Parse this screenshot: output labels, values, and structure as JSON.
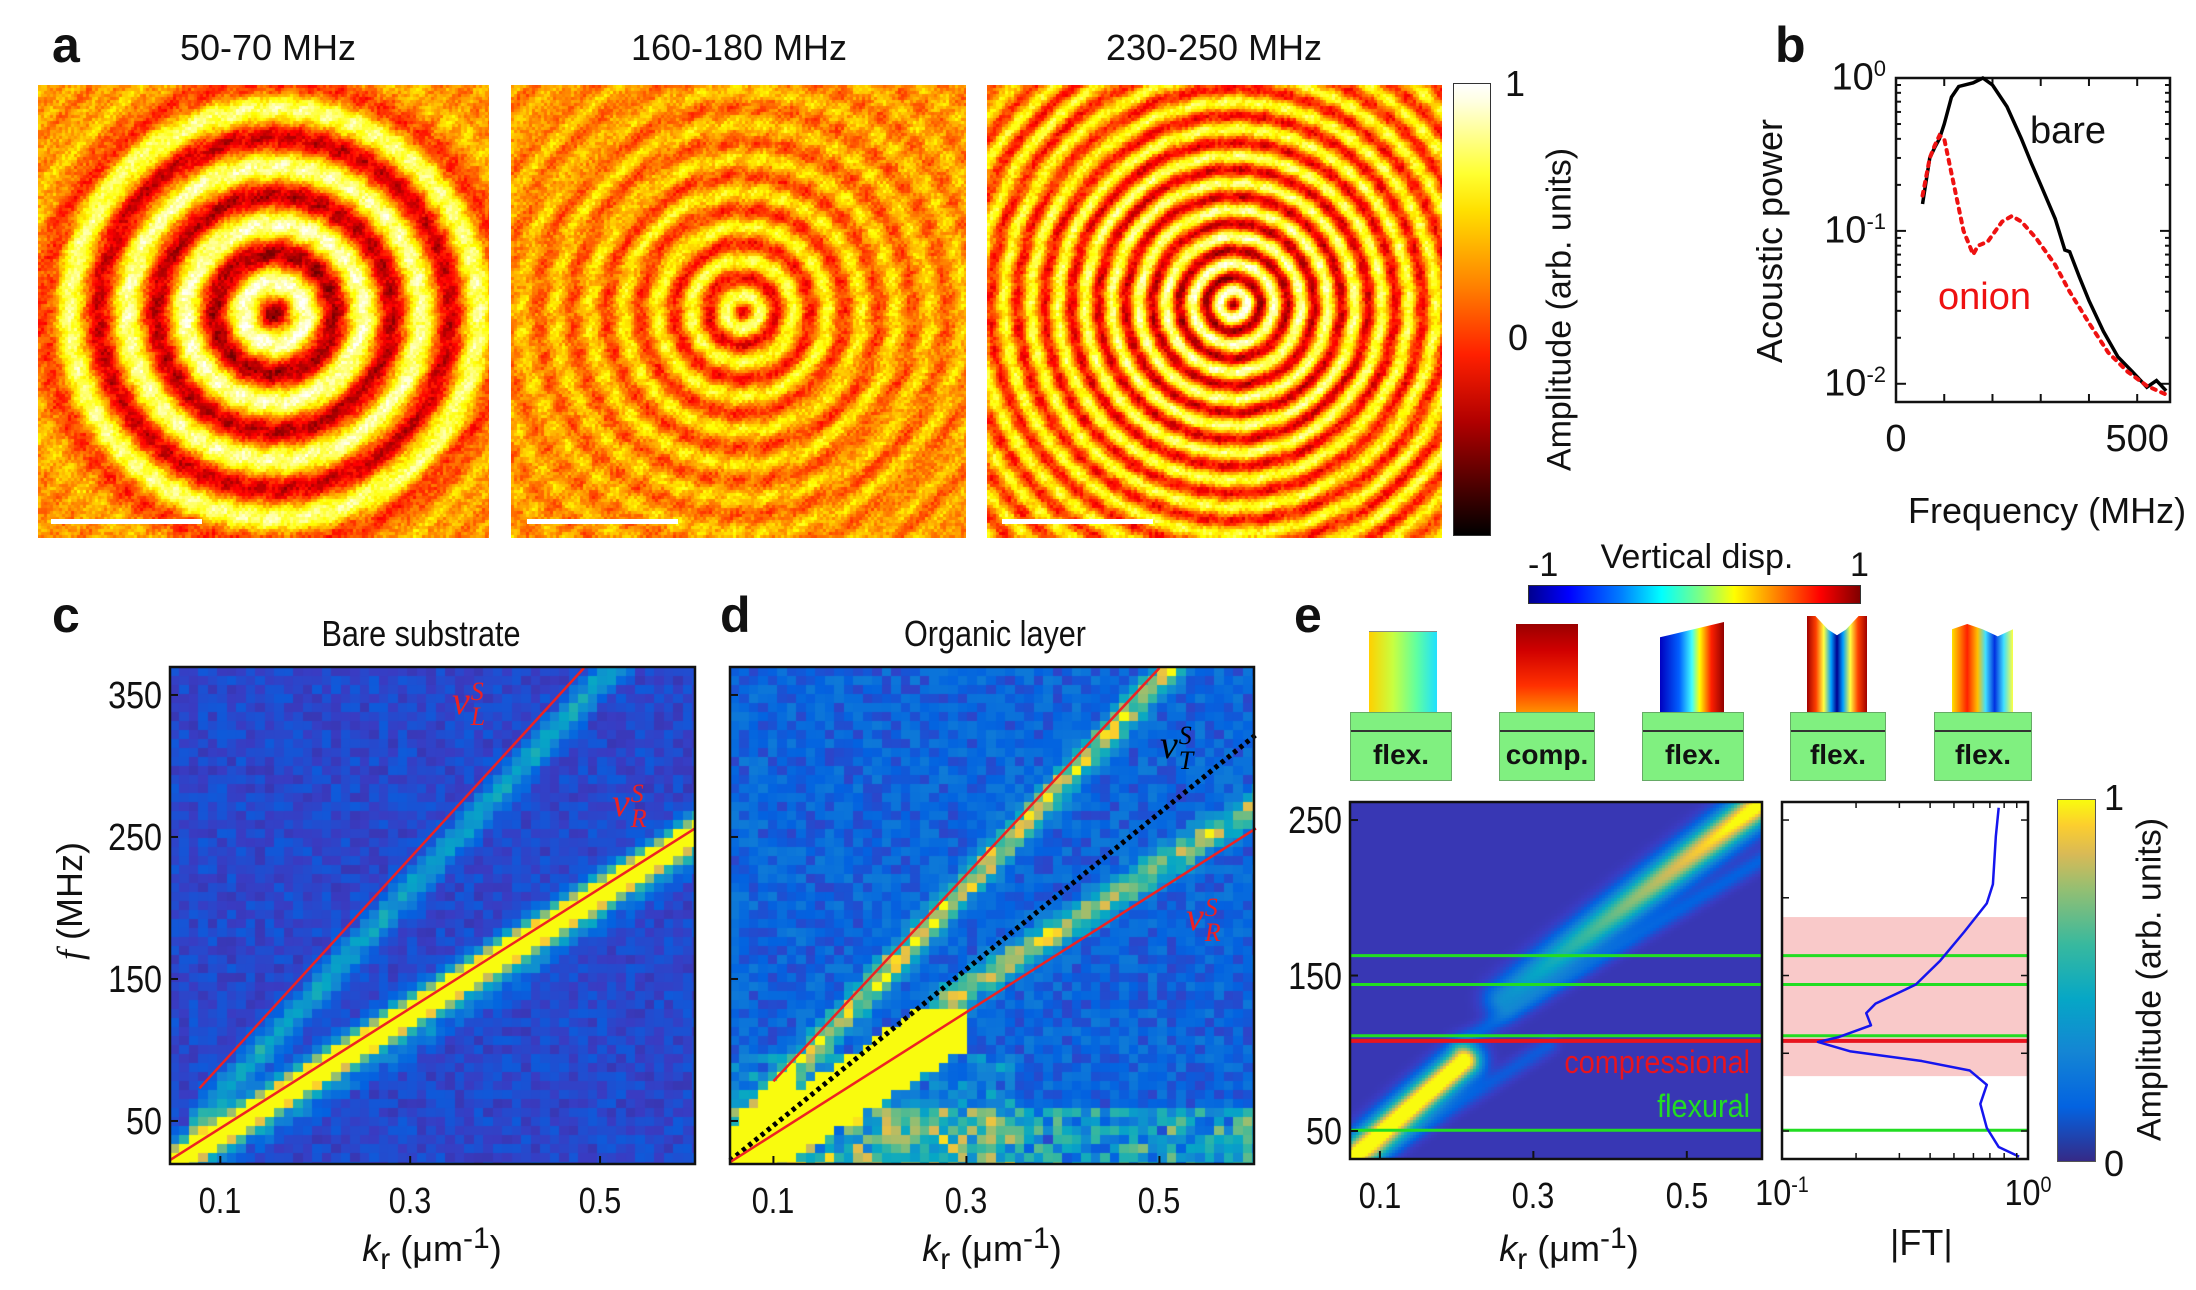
{
  "panel_labels": {
    "a": "a",
    "b": "b",
    "c": "c",
    "d": "d",
    "e": "e"
  },
  "panel_a": {
    "titles": [
      "50-70 MHz",
      "160-180 MHz",
      "230-250 MHz"
    ],
    "colorbar": {
      "colormap": "hot",
      "max_label": "1",
      "zero_label": "0",
      "label": "Amplitude (arb. units)"
    },
    "scale_bar": true
  },
  "colors": {
    "bare_line": "#000000",
    "onion_line": "#ee1111",
    "theory_line": "#ee2222",
    "transverse_line": "#000000",
    "flexural": "#22dd22",
    "compressional": "#e8141e",
    "band_shading": "#f9c9c9",
    "heatmap_colormap": "parula",
    "displacement_colormap": "jet"
  },
  "chart_data": [
    {
      "id": "b",
      "type": "line",
      "xlabel": "Frequency (MHz)",
      "ylabel": "Acoustic power",
      "xlim": [
        0,
        568
      ],
      "ylim": [
        0.0076,
        1
      ],
      "yscale": "log",
      "xticks": [
        {
          "v": 0,
          "label": "0"
        },
        {
          "v": 500,
          "label": "500"
        }
      ],
      "yticks": [
        {
          "v": 1,
          "base": "10",
          "exp": "0"
        },
        {
          "v": 0.1,
          "base": "10",
          "exp": "-1"
        },
        {
          "v": 0.01,
          "base": "10",
          "exp": "-2"
        }
      ],
      "series": [
        {
          "name": "bare",
          "style": "solid",
          "x": [
            55,
            70,
            80,
            90,
            100,
            115,
            130,
            160,
            180,
            200,
            230,
            260,
            280,
            300,
            330,
            350,
            360,
            380,
            400,
            430,
            460,
            490,
            520,
            540,
            560
          ],
          "y": [
            0.15,
            0.3,
            0.35,
            0.4,
            0.5,
            0.75,
            0.88,
            0.93,
            1.0,
            0.9,
            0.65,
            0.4,
            0.28,
            0.2,
            0.12,
            0.075,
            0.073,
            0.05,
            0.035,
            0.022,
            0.015,
            0.012,
            0.0095,
            0.0105,
            0.009
          ]
        },
        {
          "name": "onion",
          "style": "dotted",
          "x": [
            55,
            70,
            80,
            90,
            100,
            120,
            140,
            160,
            170,
            190,
            220,
            240,
            260,
            290,
            330,
            360,
            400,
            440,
            480,
            520,
            560
          ],
          "y": [
            0.17,
            0.3,
            0.36,
            0.42,
            0.4,
            0.2,
            0.1,
            0.07,
            0.08,
            0.085,
            0.115,
            0.125,
            0.115,
            0.09,
            0.06,
            0.04,
            0.025,
            0.016,
            0.012,
            0.0097,
            0.0085
          ]
        }
      ]
    },
    {
      "id": "c",
      "type": "heatmap",
      "title": "Bare substrate",
      "xlabel": {
        "symbol": "k",
        "sub": "r",
        "unit": " (μm",
        "unit_sup": "-1",
        "close": ")"
      },
      "ylabel": {
        "symbol": "f",
        "unit": " (MHz)"
      },
      "xlim": [
        0.047,
        0.6
      ],
      "ylim": [
        19.7,
        369.7
      ],
      "xticks": [
        0.1,
        0.3,
        0.5
      ],
      "yticks": [
        50,
        150,
        250,
        350
      ],
      "colormap": "parula",
      "lines": [
        {
          "label": {
            "symbol": "v",
            "sup": "S",
            "sub": "L"
          },
          "style": "solid",
          "color": "#ee2222",
          "k": [
            0.078,
            0.483
          ],
          "f": [
            73,
            369
          ]
        },
        {
          "label": {
            "symbol": "v",
            "sup": "S",
            "sub": "R"
          },
          "style": "solid",
          "color": "#ee2222",
          "k": [
            0.047,
            0.6
          ],
          "f": [
            22.5,
            256
          ]
        }
      ]
    },
    {
      "id": "d",
      "type": "heatmap",
      "title": "Organic layer",
      "xlabel": {
        "symbol": "k",
        "sub": "r",
        "unit": " (μm",
        "unit_sup": "-1",
        "close": ")"
      },
      "xlim": [
        0.055,
        0.598
      ],
      "ylim": [
        19.7,
        369.7
      ],
      "xticks": [
        0.1,
        0.3,
        0.5
      ],
      "yticks": [
        50,
        150,
        250,
        350
      ],
      "colormap": "parula",
      "lines": [
        {
          "style": "solid",
          "color": "#ee2222",
          "k": [
            0.1,
            0.5
          ],
          "f": [
            78,
            369
          ]
        },
        {
          "label": {
            "symbol": "v",
            "sup": "S",
            "sub": "T"
          },
          "style": "dotted",
          "color": "#000000",
          "k": [
            0.055,
            0.6
          ],
          "f": [
            22,
            322
          ]
        },
        {
          "label": {
            "symbol": "v",
            "sup": "S",
            "sub": "R"
          },
          "style": "solid",
          "color": "#ee2222",
          "k": [
            0.055,
            0.6
          ],
          "f": [
            21,
            256
          ]
        }
      ]
    },
    {
      "id": "e_structures",
      "type": "diagram",
      "colorbar": {
        "title": "Vertical disp.",
        "min_label": "-1",
        "max_label": "1",
        "colormap": "jet"
      },
      "modes": [
        "flex.",
        "comp.",
        "flex.",
        "flex.",
        "flex."
      ]
    },
    {
      "id": "e_map",
      "type": "heatmap",
      "xlabel": {
        "symbol": "k",
        "sub": "r",
        "unit": " (μm",
        "unit_sup": "-1",
        "close": ")"
      },
      "xlim": [
        0.061,
        0.598
      ],
      "ylim": [
        32,
        261.6
      ],
      "xticks": [
        0.1,
        0.3,
        0.5
      ],
      "yticks": [
        50,
        150,
        250
      ],
      "colormap": "parula",
      "flexural_lines_MHz": [
        162.8,
        144.2,
        111.3,
        50.5
      ],
      "compressional_line_MHz": 108,
      "legend": {
        "compressional": "compressional",
        "flexural": "flexural"
      }
    },
    {
      "id": "e_ft",
      "type": "line",
      "xlabel": "|FT|",
      "xscale": "log",
      "xlim": [
        0.1,
        1
      ],
      "ylim": [
        32,
        261.6
      ],
      "xticks": [
        {
          "v": 0.1,
          "base": "10",
          "exp": "-1"
        },
        {
          "v": 1,
          "base": "10",
          "exp": "0"
        }
      ],
      "shaded_band_MHz": [
        85.3,
        187.6
      ],
      "series": [
        {
          "x": [
            0.76,
            0.74,
            0.72,
            0.68,
            0.55,
            0.44,
            0.35,
            0.24,
            0.22,
            0.23,
            0.17,
            0.14,
            0.19,
            0.37,
            0.58,
            0.68,
            0.64,
            0.68,
            0.76,
            0.92
          ],
          "y": [
            257.9,
            239.5,
            208.7,
            196.4,
            178,
            159.6,
            144.2,
            131.9,
            125.8,
            118,
            110.4,
            107.3,
            101.2,
            95,
            88.9,
            79.7,
            67.4,
            52,
            39.7,
            33.5
          ]
        }
      ],
      "colorbar": {
        "min_label": "0",
        "max_label": "1",
        "label": "Amplitude (arb. units)",
        "colormap": "parula"
      }
    }
  ]
}
